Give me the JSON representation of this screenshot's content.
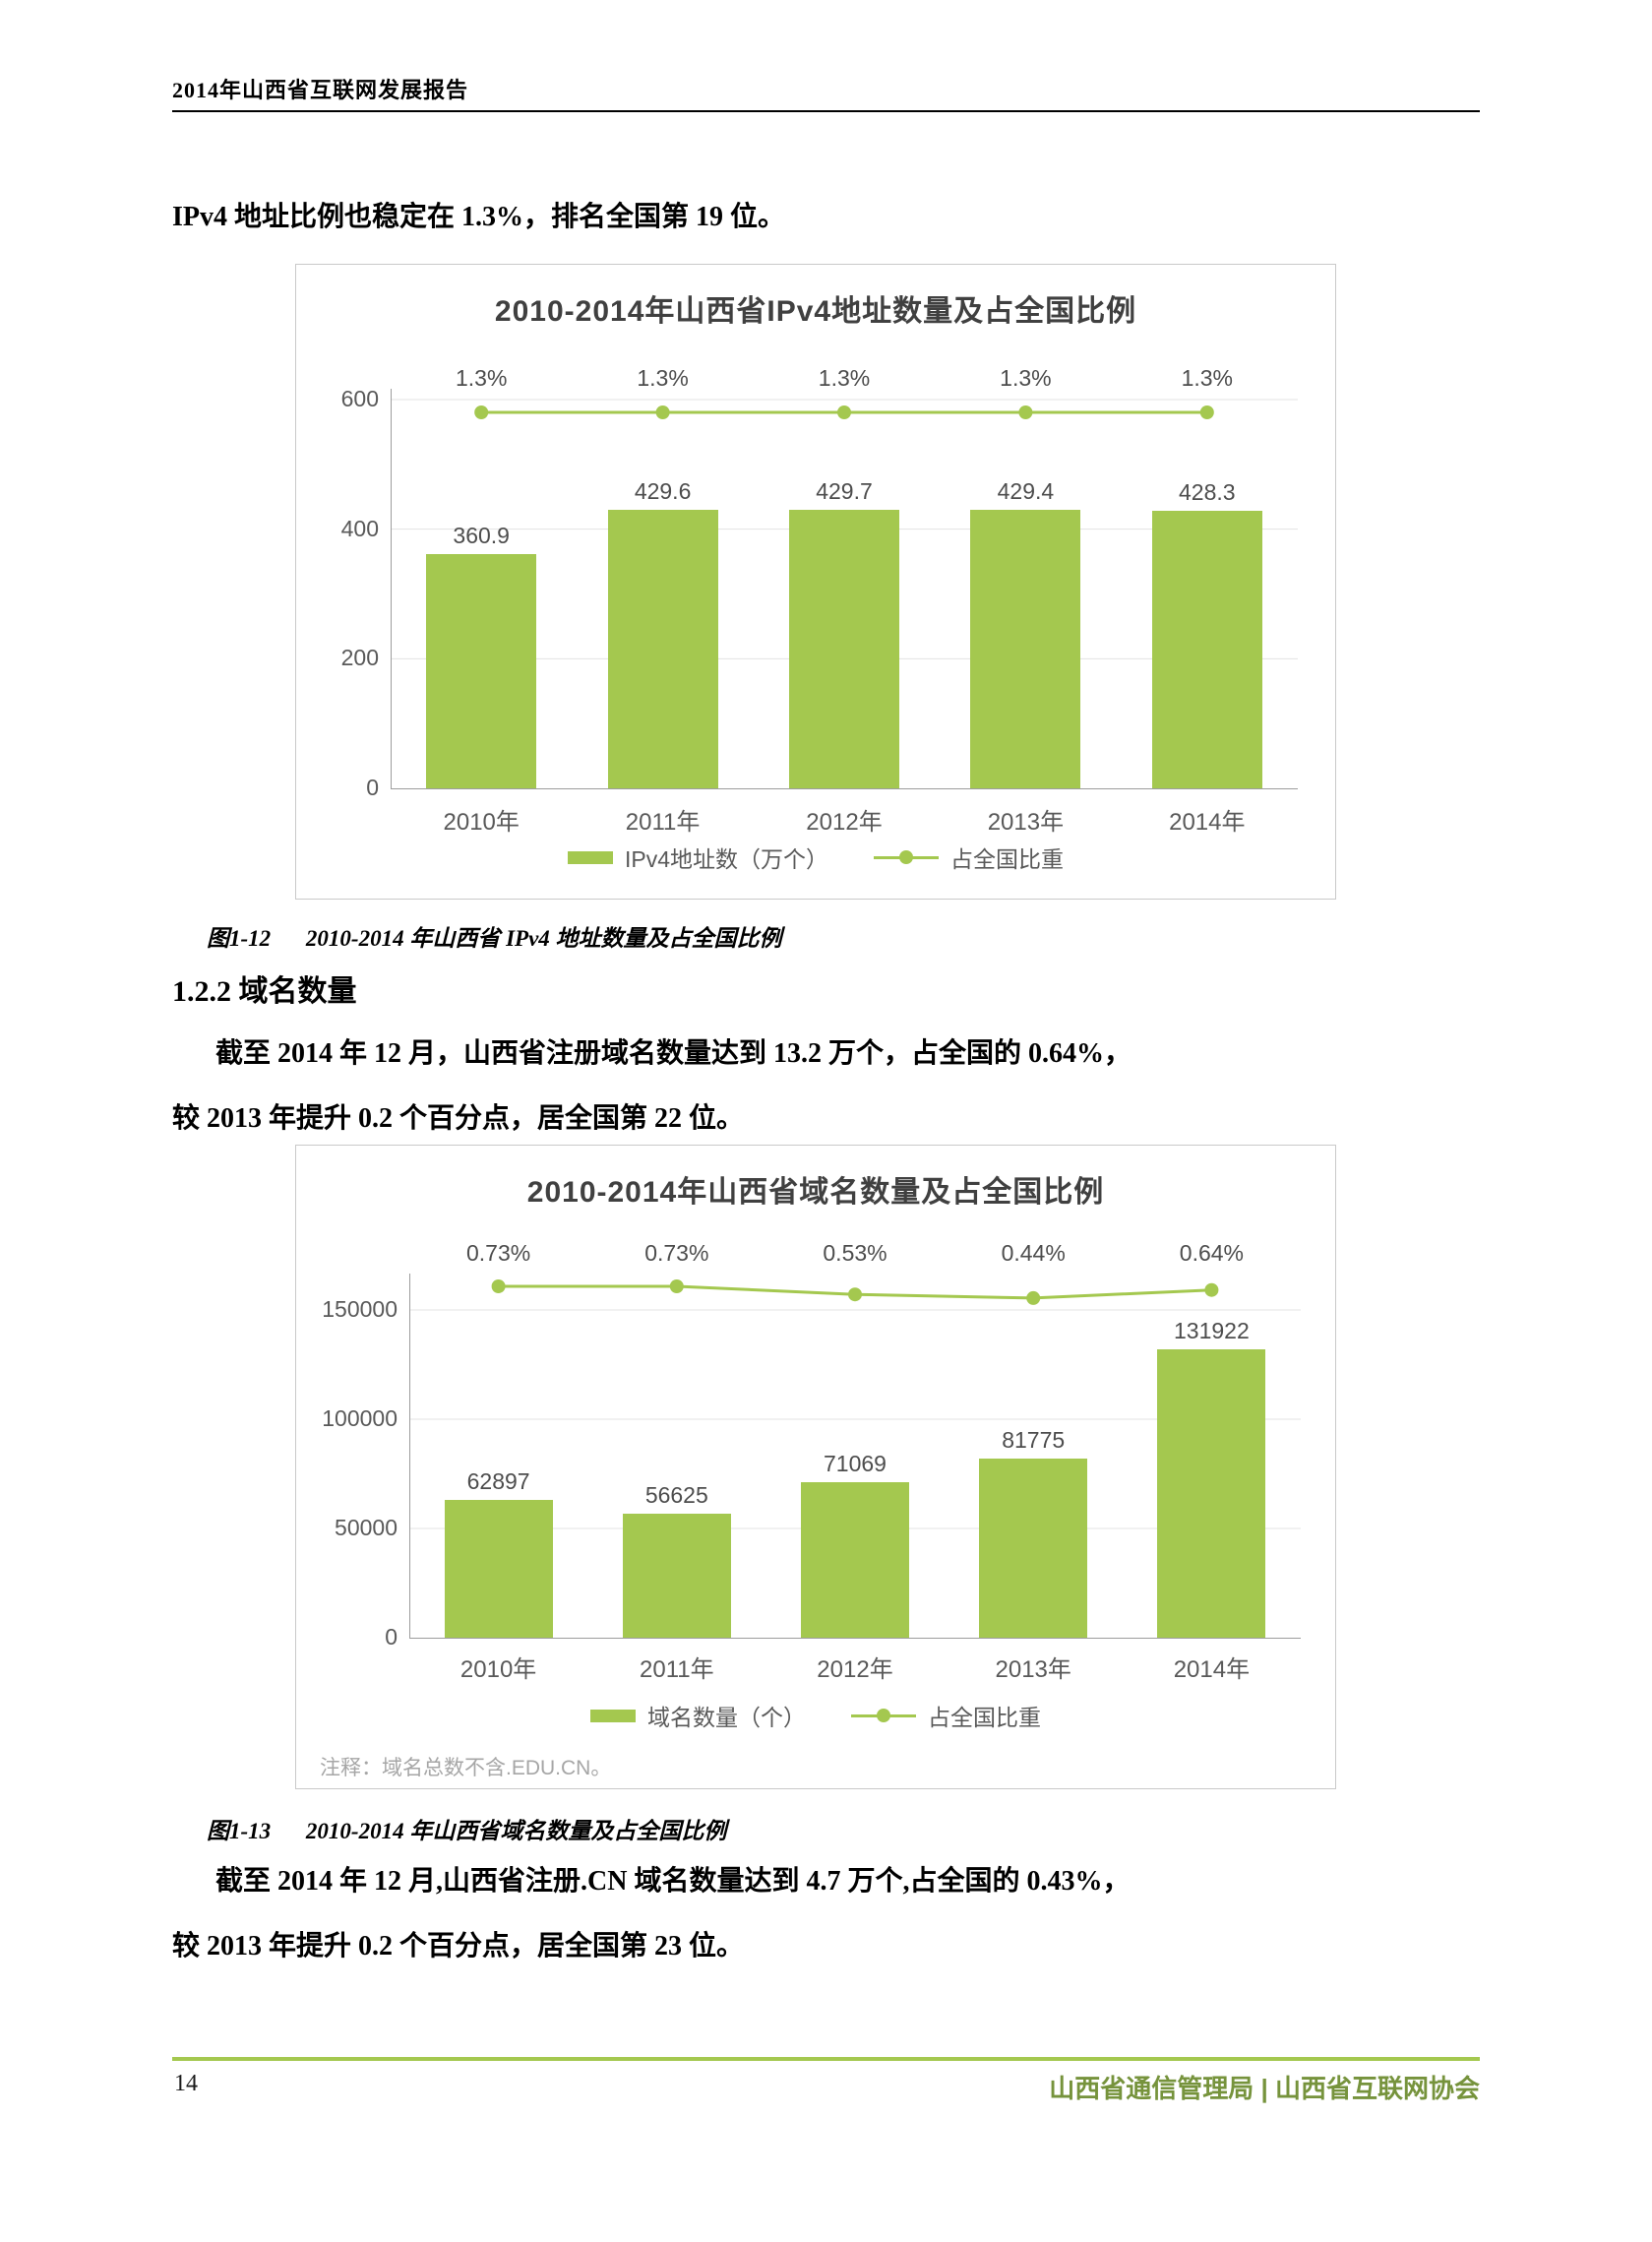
{
  "header": {
    "title": "2014年山西省互联网发展报告"
  },
  "intro_paragraph": "IPv4 地址比例也稳定在 1.3%，排名全国第 19 位。",
  "section": {
    "heading": "1.2.2 域名数量"
  },
  "paragraph_domain": {
    "line1": "截至 2014 年 12 月，山西省注册域名数量达到 13.2 万个，占全国的 0.64%，",
    "line2": "较 2013 年提升 0.2 个百分点，居全国第 22 位。"
  },
  "paragraph_cn_domain": {
    "line1": "截至 2014 年 12 月,山西省注册.CN 域名数量达到 4.7 万个,占全国的 0.43%，",
    "line2": "较 2013 年提升 0.2 个百分点，居全国第 23 位。"
  },
  "captions": {
    "fig1_12": {
      "label": "图1-12",
      "text": "2010-2014 年山西省 IPv4 地址数量及占全国比例"
    },
    "fig1_13": {
      "label": "图1-13",
      "text": "2010-2014 年山西省域名数量及占全国比例"
    }
  },
  "footer": {
    "page_number": "14",
    "organizations": "山西省通信管理局 | 山西省互联网协会"
  },
  "colors": {
    "chart_green": "#a4c84f",
    "footer_rule_green": "#a4c84f",
    "footer_text_green": "#76933c",
    "axis_gray": "#9d9d9d",
    "grid_gray": "#e3e3e3"
  },
  "chart_data": [
    {
      "type": "bar",
      "title": "2010-2014年山西省IPv4地址数量及占全国比例",
      "categories": [
        "2010年",
        "2011年",
        "2012年",
        "2013年",
        "2014年"
      ],
      "series": [
        {
          "name": "IPv4地址数（万个）",
          "kind": "bar",
          "values": [
            360.9,
            429.6,
            429.7,
            429.4,
            428.3
          ],
          "labels": [
            "360.9",
            "429.6",
            "429.7",
            "429.4",
            "428.3"
          ]
        },
        {
          "name": "占全国比重",
          "kind": "line",
          "values": [
            1.3,
            1.3,
            1.3,
            1.3,
            1.3
          ],
          "labels": [
            "1.3%",
            "1.3%",
            "1.3%",
            "1.3%",
            "1.3%"
          ]
        }
      ],
      "ylim": [
        0,
        600
      ],
      "yticks": [
        0,
        200,
        400,
        600
      ],
      "grid": true,
      "legend_position": "bottom"
    },
    {
      "type": "bar",
      "title": "2010-2014年山西省域名数量及占全国比例",
      "categories": [
        "2010年",
        "2011年",
        "2012年",
        "2013年",
        "2014年"
      ],
      "series": [
        {
          "name": "域名数量（个）",
          "kind": "bar",
          "values": [
            62897,
            56625,
            71069,
            81775,
            131922
          ],
          "labels": [
            "62897",
            "56625",
            "71069",
            "81775",
            "131922"
          ]
        },
        {
          "name": "占全国比重",
          "kind": "line",
          "values": [
            0.73,
            0.73,
            0.53,
            0.44,
            0.64
          ],
          "labels": [
            "0.73%",
            "0.73%",
            "0.53%",
            "0.44%",
            "0.64%"
          ]
        }
      ],
      "ylim": [
        0,
        150000
      ],
      "yticks": [
        0,
        50000,
        100000,
        150000
      ],
      "note": "注释：域名总数不含.EDU.CN。",
      "grid": true,
      "legend_position": "bottom"
    }
  ]
}
